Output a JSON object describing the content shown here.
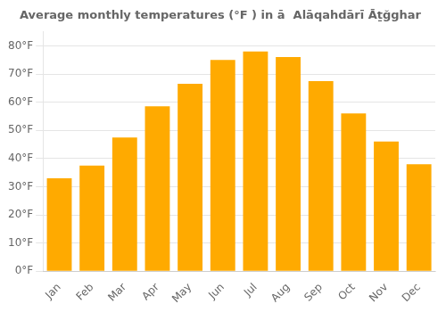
{
  "chart_data": {
    "type": "bar",
    "title": "Average monthly temperatures (°F ) in ā  Alāqahdārī Āṯğghar",
    "categories": [
      "Jan",
      "Feb",
      "Mar",
      "Apr",
      "May",
      "Jun",
      "Jul",
      "Aug",
      "Sep",
      "Oct",
      "Nov",
      "Dec"
    ],
    "values": [
      33,
      37.5,
      47.5,
      58.5,
      66.5,
      75,
      78,
      76,
      67.5,
      56,
      46,
      38
    ],
    "color": "#FFAA00",
    "ylim": [
      0,
      85
    ],
    "yticks": [
      {
        "value": 0,
        "label": "0°F"
      },
      {
        "value": 10,
        "label": "10°F"
      },
      {
        "value": 20,
        "label": "20°F"
      },
      {
        "value": 30,
        "label": "30°F"
      },
      {
        "value": 40,
        "label": "40°F"
      },
      {
        "value": 50,
        "label": "50°F"
      },
      {
        "value": 60,
        "label": "60°F"
      },
      {
        "value": 70,
        "label": "70°F"
      },
      {
        "value": 80,
        "label": "80°F"
      }
    ],
    "grid": true
  }
}
